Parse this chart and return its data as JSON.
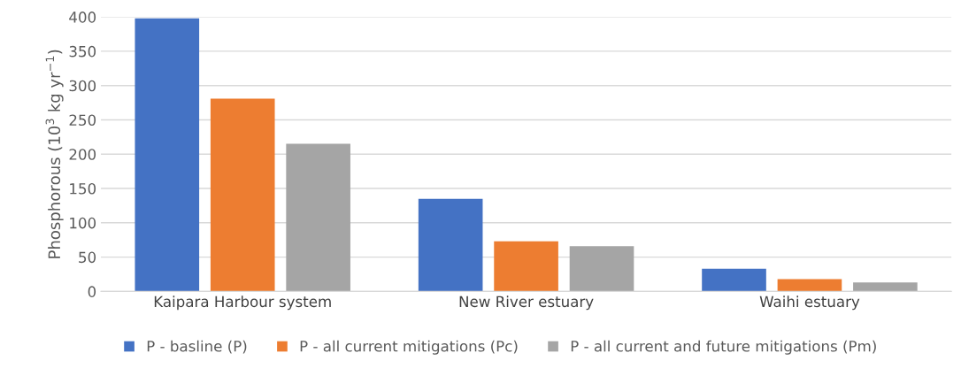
{
  "chart_data": {
    "type": "bar",
    "ylabel": "Phosphorous (10$^{3}$ kg yr$^{−1}$)",
    "categories": [
      "Kaipara Harbour system",
      "New River estuary",
      "Waihi estuary"
    ],
    "series": [
      {
        "name": "P - basline (P)",
        "color": "#4472c4",
        "values": [
          398,
          135,
          33
        ]
      },
      {
        "name": "P - all current mitigations (Pc)",
        "color": "#ed7d31",
        "values": [
          281,
          73,
          18
        ]
      },
      {
        "name": "P - all current and future mitigations (Pm)",
        "color": "#a5a5a5",
        "values": [
          215,
          66,
          13
        ]
      }
    ],
    "ylim": [
      0,
      400
    ],
    "yticks": [
      0,
      50,
      100,
      150,
      200,
      250,
      300,
      350,
      400
    ],
    "grid": "y",
    "legend": "bottom"
  }
}
